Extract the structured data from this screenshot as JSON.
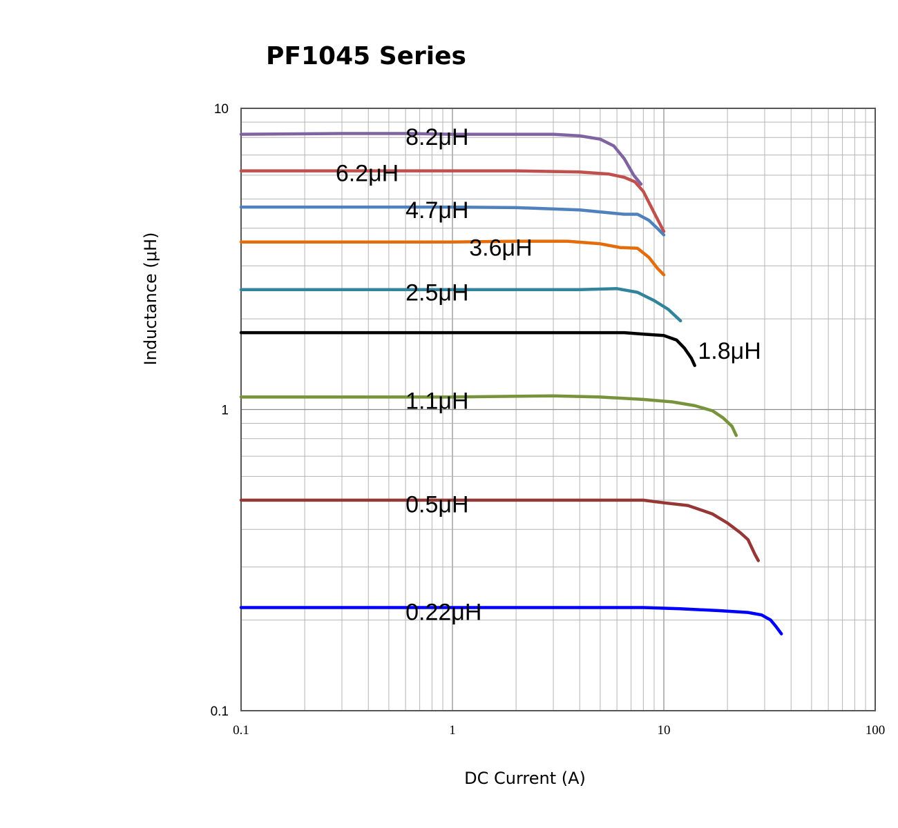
{
  "chart_data": {
    "type": "line",
    "title": "PF1045 Series",
    "xlabel": "DC Current (A)",
    "ylabel": "Inductance (μH)",
    "xscale": "log",
    "yscale": "log",
    "xlim": [
      0.1,
      100
    ],
    "ylim": [
      0.1,
      10
    ],
    "grid": true,
    "x_ticks": [
      "0.1",
      "1",
      "10",
      "100"
    ],
    "y_ticks": [
      "0.1",
      "1",
      "10"
    ],
    "series": [
      {
        "name": "8.2μH",
        "color": "#8064a2",
        "points": [
          [
            0.1,
            8.2
          ],
          [
            0.3,
            8.25
          ],
          [
            0.6,
            8.25
          ],
          [
            1,
            8.2
          ],
          [
            3,
            8.2
          ],
          [
            4,
            8.1
          ],
          [
            5,
            7.9
          ],
          [
            5.8,
            7.5
          ],
          [
            6.5,
            6.8
          ],
          [
            7.2,
            6.0
          ],
          [
            7.8,
            5.6
          ]
        ]
      },
      {
        "name": "6.2μH",
        "color": "#c0504d",
        "points": [
          [
            0.1,
            6.2
          ],
          [
            0.5,
            6.2
          ],
          [
            1,
            6.2
          ],
          [
            2,
            6.2
          ],
          [
            4,
            6.15
          ],
          [
            5.5,
            6.05
          ],
          [
            6.5,
            5.9
          ],
          [
            7.3,
            5.7
          ],
          [
            8,
            5.3
          ],
          [
            9,
            4.5
          ],
          [
            10,
            3.9
          ]
        ]
      },
      {
        "name": "4.7μH",
        "color": "#4f81bd",
        "points": [
          [
            0.1,
            4.7
          ],
          [
            0.5,
            4.7
          ],
          [
            1,
            4.7
          ],
          [
            2,
            4.68
          ],
          [
            4,
            4.6
          ],
          [
            5.5,
            4.5
          ],
          [
            6.5,
            4.45
          ],
          [
            7.5,
            4.45
          ],
          [
            8.5,
            4.25
          ],
          [
            9.3,
            4.0
          ],
          [
            10,
            3.8
          ]
        ]
      },
      {
        "name": "3.6μH",
        "color": "#e46c0a",
        "points": [
          [
            0.1,
            3.6
          ],
          [
            0.5,
            3.6
          ],
          [
            1,
            3.6
          ],
          [
            2,
            3.62
          ],
          [
            3.5,
            3.62
          ],
          [
            5,
            3.55
          ],
          [
            6.2,
            3.45
          ],
          [
            7.5,
            3.43
          ],
          [
            8.5,
            3.2
          ],
          [
            9.3,
            2.95
          ],
          [
            10,
            2.8
          ]
        ]
      },
      {
        "name": "2.5μH",
        "color": "#31849b",
        "points": [
          [
            0.1,
            2.5
          ],
          [
            0.5,
            2.5
          ],
          [
            1,
            2.5
          ],
          [
            2,
            2.5
          ],
          [
            4,
            2.5
          ],
          [
            6,
            2.52
          ],
          [
            7.5,
            2.45
          ],
          [
            9,
            2.3
          ],
          [
            10.5,
            2.15
          ],
          [
            12,
            1.97
          ]
        ]
      },
      {
        "name": "1.8μH",
        "color": "#000000",
        "points": [
          [
            0.1,
            1.8
          ],
          [
            0.5,
            1.8
          ],
          [
            1,
            1.8
          ],
          [
            2,
            1.8
          ],
          [
            4,
            1.8
          ],
          [
            6.5,
            1.8
          ],
          [
            8,
            1.78
          ],
          [
            10,
            1.76
          ],
          [
            11.5,
            1.7
          ],
          [
            12.5,
            1.6
          ],
          [
            13.5,
            1.48
          ],
          [
            14,
            1.4
          ]
        ]
      },
      {
        "name": "1.1μH",
        "color": "#77933c",
        "points": [
          [
            0.1,
            1.1
          ],
          [
            0.5,
            1.1
          ],
          [
            1,
            1.1
          ],
          [
            3,
            1.11
          ],
          [
            5,
            1.1
          ],
          [
            8,
            1.08
          ],
          [
            11,
            1.06
          ],
          [
            14,
            1.03
          ],
          [
            17,
            0.99
          ],
          [
            19,
            0.94
          ],
          [
            21,
            0.88
          ],
          [
            22,
            0.82
          ]
        ]
      },
      {
        "name": "0.5μH",
        "color": "#953735",
        "points": [
          [
            0.1,
            0.5
          ],
          [
            0.5,
            0.5
          ],
          [
            1,
            0.5
          ],
          [
            3,
            0.5
          ],
          [
            6,
            0.5
          ],
          [
            8,
            0.5
          ],
          [
            10,
            0.49
          ],
          [
            13,
            0.48
          ],
          [
            17,
            0.45
          ],
          [
            20,
            0.42
          ],
          [
            23,
            0.39
          ],
          [
            25,
            0.37
          ],
          [
            27,
            0.33
          ],
          [
            28,
            0.315
          ]
        ]
      },
      {
        "name": "0.22μH",
        "color": "#0000ff",
        "points": [
          [
            0.1,
            0.22
          ],
          [
            0.5,
            0.22
          ],
          [
            1,
            0.22
          ],
          [
            3,
            0.22
          ],
          [
            8,
            0.22
          ],
          [
            12,
            0.218
          ],
          [
            18,
            0.215
          ],
          [
            25,
            0.212
          ],
          [
            29,
            0.208
          ],
          [
            32,
            0.2
          ],
          [
            34,
            0.19
          ],
          [
            36,
            0.18
          ]
        ]
      }
    ],
    "labels": [
      {
        "text": "8.2μH",
        "x": 0.6,
        "y": 8.05
      },
      {
        "text": "6.2μH",
        "x": 0.28,
        "y": 6.1
      },
      {
        "text": "4.7μH",
        "x": 0.6,
        "y": 4.6
      },
      {
        "text": "3.6μH",
        "x": 1.2,
        "y": 3.45
      },
      {
        "text": "2.5μH",
        "x": 0.6,
        "y": 2.45
      },
      {
        "text": "1.8μH",
        "x": 14.5,
        "y": 1.57
      },
      {
        "text": "1.1μH",
        "x": 0.6,
        "y": 1.07
      },
      {
        "text": "0.5μH",
        "x": 0.6,
        "y": 0.485
      },
      {
        "text": "0.22μH",
        "x": 0.6,
        "y": 0.213
      }
    ]
  }
}
